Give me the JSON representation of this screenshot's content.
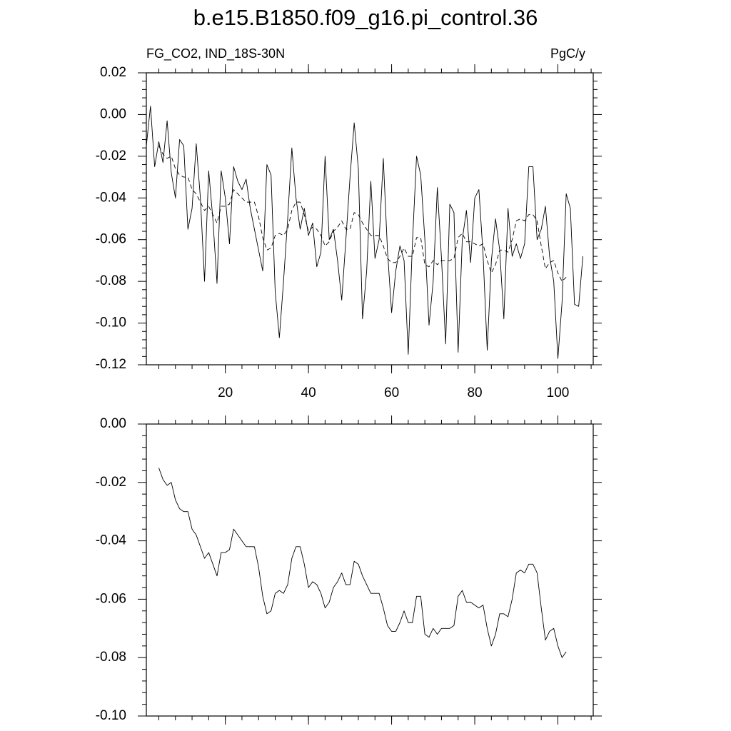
{
  "chart_data": [
    {
      "type": "line",
      "title": "b.e15.B1850.f09_g16.pi_control.36",
      "subtitle": "FG_CO2, IND_18S-30N",
      "units": "PgC/y",
      "xlim": [
        1,
        108.5
      ],
      "xticks": [
        20,
        40,
        60,
        80,
        100
      ],
      "ylim": [
        -0.12,
        0.02
      ],
      "yticks": [
        0.02,
        {
          "value": 0,
          "label": "0.00"
        },
        -0.02,
        -0.04,
        -0.06,
        -0.08,
        {
          "value": -0.1,
          "label": "-0.10"
        },
        -0.12
      ],
      "series": [
        {
          "color": "#000000",
          "style": "solid",
          "x": [
            1,
            2,
            3,
            4,
            5,
            6,
            7,
            8,
            9,
            10,
            11,
            12,
            13,
            14,
            15,
            16,
            17,
            18,
            19,
            20,
            21,
            22,
            23,
            24,
            25,
            26,
            27,
            28,
            29,
            30,
            31,
            32,
            33,
            34,
            35,
            36,
            37,
            38,
            39,
            40,
            41,
            42,
            43,
            44,
            45,
            46,
            47,
            48,
            49,
            50,
            51,
            52,
            53,
            54,
            55,
            56,
            57,
            58,
            59,
            60,
            61,
            62,
            63,
            64,
            65,
            66,
            67,
            68,
            69,
            70,
            71,
            72,
            73,
            74,
            75,
            76,
            77,
            78,
            79,
            80,
            81,
            82,
            83,
            84,
            85,
            86,
            87,
            88,
            89,
            90,
            91,
            92,
            93,
            94,
            95,
            96,
            97,
            98,
            99,
            100,
            101,
            102,
            103,
            104,
            105,
            106
          ],
          "values": [
            -0.015,
            0.004,
            -0.025,
            -0.013,
            -0.023,
            -0.003,
            -0.028,
            -0.04,
            -0.012,
            -0.015,
            -0.055,
            -0.045,
            -0.014,
            -0.04,
            -0.08,
            -0.027,
            -0.05,
            -0.081,
            -0.027,
            -0.04,
            -0.062,
            -0.025,
            -0.032,
            -0.036,
            -0.031,
            -0.045,
            -0.055,
            -0.065,
            -0.075,
            -0.024,
            -0.029,
            -0.085,
            -0.107,
            -0.08,
            -0.05,
            -0.016,
            -0.04,
            -0.055,
            -0.045,
            -0.058,
            -0.052,
            -0.073,
            -0.066,
            -0.02,
            -0.06,
            -0.055,
            -0.07,
            -0.089,
            -0.06,
            -0.03,
            -0.004,
            -0.026,
            -0.098,
            -0.075,
            -0.032,
            -0.069,
            -0.06,
            -0.021,
            -0.065,
            -0.095,
            -0.075,
            -0.063,
            -0.07,
            -0.115,
            -0.062,
            -0.02,
            -0.029,
            -0.06,
            -0.101,
            -0.08,
            -0.035,
            -0.069,
            -0.11,
            -0.043,
            -0.047,
            -0.114,
            -0.06,
            -0.046,
            -0.071,
            -0.04,
            -0.036,
            -0.067,
            -0.113,
            -0.07,
            -0.05,
            -0.065,
            -0.098,
            -0.045,
            -0.068,
            -0.062,
            -0.069,
            -0.062,
            -0.025,
            -0.025,
            -0.06,
            -0.055,
            -0.044,
            -0.068,
            -0.08,
            -0.117,
            -0.09,
            -0.038,
            -0.045,
            -0.091,
            -0.092,
            -0.068
          ]
        },
        {
          "color": "#000000",
          "style": "dashed",
          "x": [
            4,
            5,
            6,
            7,
            8,
            9,
            10,
            11,
            12,
            13,
            14,
            15,
            16,
            17,
            18,
            19,
            20,
            21,
            22,
            23,
            24,
            25,
            26,
            27,
            28,
            29,
            30,
            31,
            32,
            33,
            34,
            35,
            36,
            37,
            38,
            39,
            40,
            41,
            42,
            43,
            44,
            45,
            46,
            47,
            48,
            49,
            50,
            51,
            52,
            53,
            54,
            55,
            56,
            57,
            58,
            59,
            60,
            61,
            62,
            63,
            64,
            65,
            66,
            67,
            68,
            69,
            70,
            71,
            72,
            73,
            74,
            75,
            76,
            77,
            78,
            79,
            80,
            81,
            82,
            83,
            84,
            85,
            86,
            87,
            88,
            89,
            90,
            91,
            92,
            93,
            94,
            95,
            96,
            97,
            98,
            99,
            100,
            101,
            102
          ],
          "values": [
            -0.015,
            -0.019,
            -0.021,
            -0.02,
            -0.026,
            -0.029,
            -0.03,
            -0.03,
            -0.036,
            -0.038,
            -0.042,
            -0.046,
            -0.044,
            -0.048,
            -0.052,
            -0.044,
            -0.044,
            -0.043,
            -0.036,
            -0.038,
            -0.04,
            -0.042,
            -0.042,
            -0.042,
            -0.049,
            -0.059,
            -0.065,
            -0.064,
            -0.058,
            -0.057,
            -0.058,
            -0.055,
            -0.046,
            -0.042,
            -0.042,
            -0.048,
            -0.056,
            -0.054,
            -0.055,
            -0.058,
            -0.063,
            -0.061,
            -0.056,
            -0.054,
            -0.051,
            -0.055,
            -0.055,
            -0.047,
            -0.048,
            -0.052,
            -0.055,
            -0.058,
            -0.058,
            -0.058,
            -0.063,
            -0.069,
            -0.071,
            -0.071,
            -0.068,
            -0.064,
            -0.068,
            -0.068,
            -0.059,
            -0.059,
            -0.072,
            -0.073,
            -0.07,
            -0.072,
            -0.07,
            -0.07,
            -0.07,
            -0.069,
            -0.059,
            -0.057,
            -0.061,
            -0.061,
            -0.062,
            -0.063,
            -0.062,
            -0.07,
            -0.076,
            -0.072,
            -0.065,
            -0.065,
            -0.066,
            -0.06,
            -0.051,
            -0.05,
            -0.051,
            -0.048,
            -0.048,
            -0.051,
            -0.063,
            -0.074,
            -0.071,
            -0.07,
            -0.076,
            -0.08,
            -0.078
          ]
        }
      ]
    },
    {
      "type": "line",
      "xlim": [
        1,
        108.5
      ],
      "xticks": [
        20,
        40,
        60,
        80,
        100
      ],
      "ylim": [
        -0.1,
        0
      ],
      "yticks": [
        {
          "value": 0,
          "label": "0.00"
        },
        -0.02,
        -0.04,
        -0.06,
        -0.08,
        {
          "value": -0.1,
          "label": "-0.10"
        }
      ],
      "series": [
        {
          "color": "#000000",
          "style": "solid",
          "x": [
            4,
            5,
            6,
            7,
            8,
            9,
            10,
            11,
            12,
            13,
            14,
            15,
            16,
            17,
            18,
            19,
            20,
            21,
            22,
            23,
            24,
            25,
            26,
            27,
            28,
            29,
            30,
            31,
            32,
            33,
            34,
            35,
            36,
            37,
            38,
            39,
            40,
            41,
            42,
            43,
            44,
            45,
            46,
            47,
            48,
            49,
            50,
            51,
            52,
            53,
            54,
            55,
            56,
            57,
            58,
            59,
            60,
            61,
            62,
            63,
            64,
            65,
            66,
            67,
            68,
            69,
            70,
            71,
            72,
            73,
            74,
            75,
            76,
            77,
            78,
            79,
            80,
            81,
            82,
            83,
            84,
            85,
            86,
            87,
            88,
            89,
            90,
            91,
            92,
            93,
            94,
            95,
            96,
            97,
            98,
            99,
            100,
            101,
            102
          ],
          "values": [
            -0.015,
            -0.019,
            -0.021,
            -0.02,
            -0.026,
            -0.029,
            -0.03,
            -0.03,
            -0.036,
            -0.038,
            -0.042,
            -0.046,
            -0.044,
            -0.048,
            -0.052,
            -0.044,
            -0.044,
            -0.043,
            -0.036,
            -0.038,
            -0.04,
            -0.042,
            -0.042,
            -0.042,
            -0.049,
            -0.059,
            -0.065,
            -0.064,
            -0.058,
            -0.057,
            -0.058,
            -0.055,
            -0.046,
            -0.042,
            -0.042,
            -0.048,
            -0.056,
            -0.054,
            -0.055,
            -0.058,
            -0.063,
            -0.061,
            -0.056,
            -0.054,
            -0.051,
            -0.055,
            -0.055,
            -0.047,
            -0.048,
            -0.052,
            -0.055,
            -0.058,
            -0.058,
            -0.058,
            -0.063,
            -0.069,
            -0.071,
            -0.071,
            -0.068,
            -0.064,
            -0.068,
            -0.068,
            -0.059,
            -0.059,
            -0.072,
            -0.073,
            -0.07,
            -0.072,
            -0.07,
            -0.07,
            -0.07,
            -0.069,
            -0.059,
            -0.057,
            -0.061,
            -0.061,
            -0.062,
            -0.063,
            -0.062,
            -0.07,
            -0.076,
            -0.072,
            -0.065,
            -0.065,
            -0.066,
            -0.06,
            -0.051,
            -0.05,
            -0.051,
            -0.048,
            -0.048,
            -0.051,
            -0.063,
            -0.074,
            -0.071,
            -0.07,
            -0.076,
            -0.08,
            -0.078
          ]
        }
      ]
    }
  ]
}
